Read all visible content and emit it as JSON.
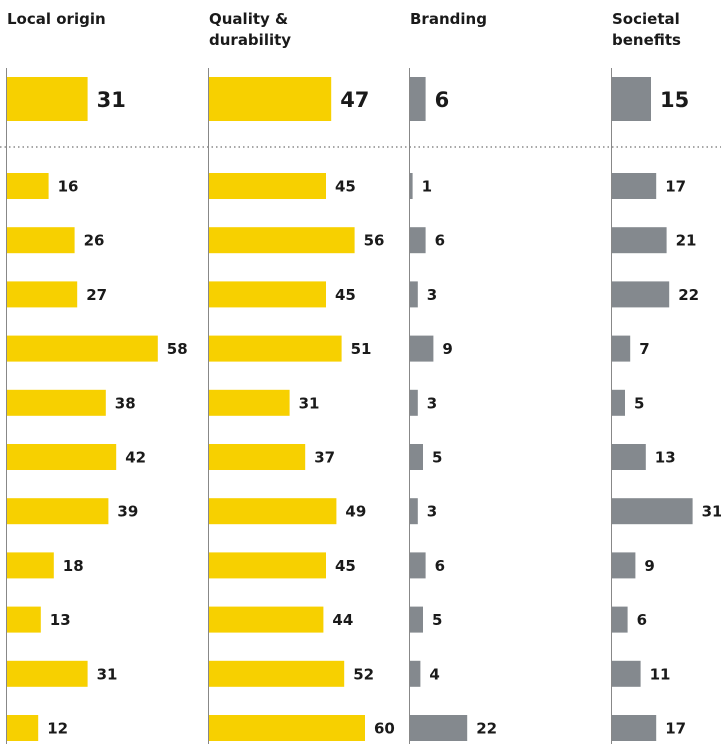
{
  "chart_data": {
    "type": "bar",
    "orientation": "horizontal",
    "layout": "small-multiples",
    "panels": [
      {
        "title": "Local origin",
        "color": "#f7d000",
        "total": 31,
        "values": [
          16,
          26,
          27,
          58,
          38,
          42,
          39,
          18,
          13,
          31,
          12
        ]
      },
      {
        "title": "Quality & durability",
        "title_lines": [
          "Quality &",
          "durability"
        ],
        "color": "#f7d000",
        "total": 47,
        "values": [
          45,
          56,
          45,
          51,
          31,
          37,
          49,
          45,
          44,
          52,
          60
        ]
      },
      {
        "title": "Branding",
        "color": "#84898e",
        "total": 6,
        "values": [
          1,
          6,
          3,
          9,
          3,
          5,
          3,
          6,
          5,
          4,
          22
        ]
      },
      {
        "title": "Societal benefits",
        "title_lines": [
          "Societal",
          "benefits"
        ],
        "color": "#84898e",
        "total": 15,
        "values": [
          17,
          21,
          22,
          7,
          5,
          13,
          31,
          9,
          6,
          11,
          17
        ]
      }
    ],
    "grid": false,
    "legend": "none"
  }
}
